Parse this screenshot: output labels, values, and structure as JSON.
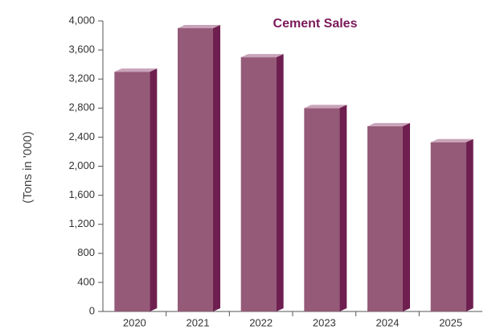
{
  "chart_data": {
    "type": "bar3d",
    "title": "Cement Sales",
    "y_label": "(Tons in '000)",
    "categories": [
      "2020",
      "2021",
      "2022",
      "2023",
      "2024",
      "2025"
    ],
    "values": [
      3300,
      3900,
      3500,
      2800,
      2550,
      2330
    ],
    "color": "#955a78",
    "side_color": "#6e1f4f",
    "top_color": "#c9a3b9",
    "ylim": [
      0,
      4000
    ],
    "yticks": [
      0,
      400,
      800,
      {
        "value": 1200,
        "label": "1,200"
      },
      {
        "value": 1600,
        "label": "1,600"
      },
      {
        "value": 2000,
        "label": "2,000"
      },
      {
        "value": 2400,
        "label": "2,400"
      },
      {
        "value": 2800,
        "label": "2,800"
      },
      {
        "value": 3200,
        "label": "3,200"
      },
      {
        "value": 3600,
        "label": "3,600"
      },
      {
        "value": 4000,
        "label": "4,000"
      }
    ],
    "grid": false
  }
}
